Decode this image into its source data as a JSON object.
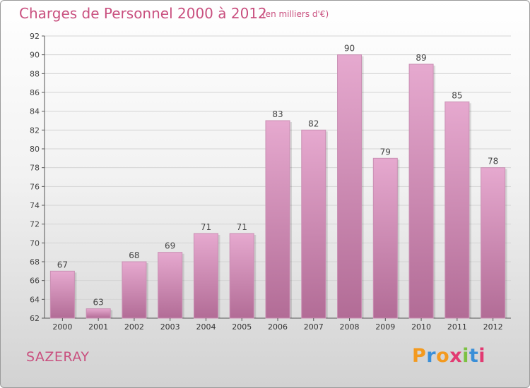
{
  "header": {
    "title": "Charges de Personnel 2000 à 2012",
    "subtitle": "(en milliers d'€)"
  },
  "footer": {
    "commune": "SAZERAY",
    "logo_text": "Proxiti"
  },
  "colors": {
    "title": "#c9507f",
    "bar_light": "#e6a9cf",
    "bar_dark": "#b26c96",
    "logo": [
      "#f39a1f",
      "#3a8fd8",
      "#f39a1f",
      "#e23a72",
      "#7cc142",
      "#3a8fd8",
      "#e23a72"
    ]
  },
  "chart_data": {
    "type": "bar",
    "categories": [
      "2000",
      "2001",
      "2002",
      "2003",
      "2004",
      "2005",
      "2006",
      "2007",
      "2008",
      "2009",
      "2010",
      "2011",
      "2012"
    ],
    "values": [
      67,
      63,
      68,
      69,
      71,
      71,
      83,
      82,
      90,
      79,
      89,
      85,
      78
    ],
    "ylim": [
      62,
      92
    ],
    "yticks": [
      62,
      64,
      66,
      68,
      70,
      72,
      74,
      76,
      78,
      80,
      82,
      84,
      86,
      88,
      90,
      92
    ],
    "grid": true,
    "xlabel": "",
    "ylabel": ""
  }
}
